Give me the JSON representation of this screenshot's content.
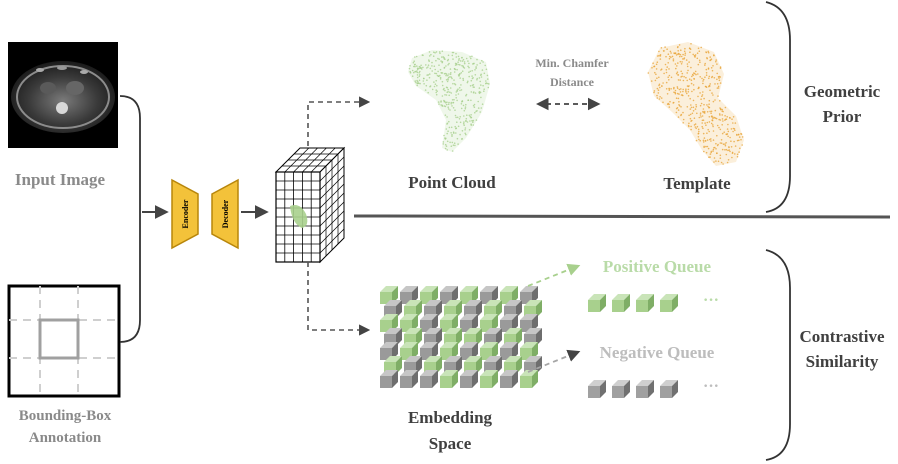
{
  "labels": {
    "input_image": "Input Image",
    "bbox_line1": "Bounding-Box",
    "bbox_line2": "Annotation",
    "encoder": "Encoder",
    "decoder": "Decoder",
    "point_cloud": "Point Cloud",
    "template": "Template",
    "chamfer_line1": "Min. Chamfer",
    "chamfer_line2": "Distance",
    "geometric_line1": "Geometric",
    "geometric_line2": "Prior",
    "positive_queue": "Positive Queue",
    "negative_queue": "Negative Queue",
    "embedding_line1": "Embedding",
    "embedding_line2": "Space",
    "contrastive_line1": "Contrastive",
    "contrastive_line2": "Similarity",
    "ellipsis": "···"
  },
  "colors": {
    "green": "#a8d08d",
    "green_light": "#c9e4b8",
    "gray_block": "#a6a6a6",
    "orange_points": "#e9a53a",
    "encoder_fill": "#f3c23a",
    "encoder_stroke": "#b8860b",
    "line": "#444444"
  },
  "icons": [
    "ct-scan-image",
    "bounding-box-icon",
    "encoder-trapezoid",
    "decoder-trapezoid",
    "feature-cube-icon",
    "point-cloud-shape",
    "template-shape"
  ]
}
